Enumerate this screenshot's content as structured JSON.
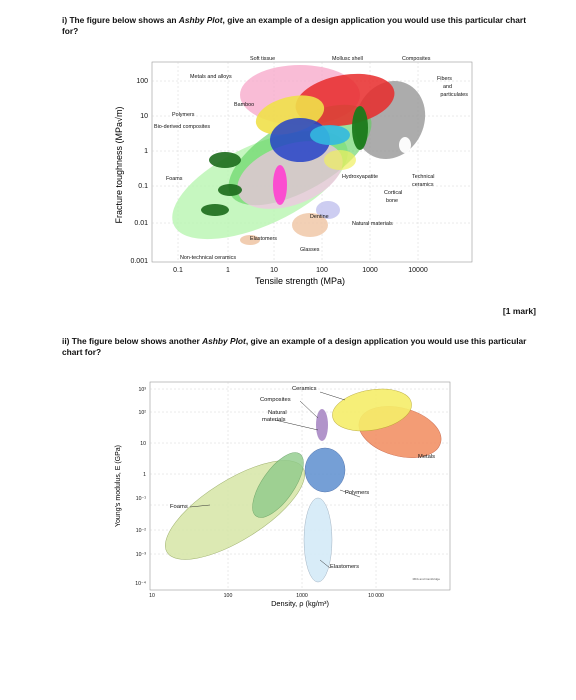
{
  "question1": {
    "prefix": "i) The figure below shows an ",
    "emph": "Ashby Plot",
    "suffix": ", give an example of a design application you would use this particular chart for?"
  },
  "mark": "[1 mark]",
  "question2": {
    "prefix": "ii) The figure below shows another ",
    "emph": "Ashby Plot",
    "suffix": ", give an example of a design application you would use this particular chart for?"
  },
  "chart_data": [
    {
      "type": "scatter",
      "title": "",
      "xlabel": "Tensile strength (MPa)",
      "ylabel": "Fracture toughness (MPa√m)",
      "x_scale": "log",
      "y_scale": "log",
      "x_ticks": [
        "0.1",
        "1",
        "10",
        "100",
        "1000",
        "10000"
      ],
      "y_ticks": [
        "0.001",
        "0.01",
        "0.1",
        "1",
        "10",
        "100"
      ],
      "grid": true,
      "annotations": [
        "Soft tissue",
        "Mollusc shell",
        "Composites",
        "Metals and alloys",
        "Fibers and particulates",
        "Bamboo",
        "Polymers",
        "Bio-derived composites",
        "Foams",
        "Hydroxyapatite",
        "Technical ceramics",
        "Cortical bone",
        "Dentine",
        "Natural materials",
        "Elastomers",
        "Glasses",
        "Non-technical ceramics"
      ],
      "regions": [
        {
          "name": "Metals and alloys",
          "x": [
            40,
            4000
          ],
          "y": [
            8,
            200
          ],
          "color": "#e23a3a"
        },
        {
          "name": "Composites",
          "x": [
            100,
            4000
          ],
          "y": [
            3,
            60
          ],
          "color": "#b0b0b0"
        },
        {
          "name": "Polymers",
          "x": [
            5,
            150
          ],
          "y": [
            0.5,
            8
          ],
          "color": "#2a44c8"
        },
        {
          "name": "Foams",
          "x": [
            0.1,
            10
          ],
          "y": [
            0.005,
            0.5
          ],
          "color": "#7ee07e"
        },
        {
          "name": "Elastomers",
          "x": [
            3,
            40
          ],
          "y": [
            0.05,
            1
          ],
          "color": "#f04fb0"
        },
        {
          "name": "Natural materials",
          "x": [
            0.2,
            300
          ],
          "y": [
            0.02,
            20
          ],
          "color": "#2f8f2f"
        },
        {
          "name": "Glasses",
          "x": [
            20,
            200
          ],
          "y": [
            0.4,
            2
          ],
          "color": "#d9a0a0"
        },
        {
          "name": "Technical ceramics",
          "x": [
            200,
            3000
          ],
          "y": [
            1,
            10
          ],
          "color": "#e8d04a"
        }
      ]
    },
    {
      "type": "scatter",
      "title": "",
      "xlabel": "Density, ρ (kg/m³)",
      "ylabel": "Young's modulus, E (GPa)",
      "x_scale": "log",
      "y_scale": "log",
      "x_ticks": [
        "10",
        "100",
        "1000",
        "10 000"
      ],
      "y_ticks": [
        "10⁻⁴",
        "10⁻³",
        "10⁻²",
        "10⁻¹",
        "1",
        "10",
        "10²",
        "10³"
      ],
      "grid": true,
      "annotations": [
        "Ceramics",
        "Composites",
        "Natural materials",
        "Metals",
        "Polymers",
        "Foams",
        "Elastomers"
      ],
      "regions": [
        {
          "name": "Foams",
          "x": [
            10,
            800
          ],
          "y": [
            0.0001,
            1
          ],
          "color": "#dbe8a0"
        },
        {
          "name": "Natural materials",
          "x": [
            150,
            1500
          ],
          "y": [
            0.01,
            50
          ],
          "color": "#9fd09a"
        },
        {
          "name": "Polymers",
          "x": [
            900,
            2200
          ],
          "y": [
            0.2,
            5
          ],
          "color": "#6a9ad0"
        },
        {
          "name": "Elastomers",
          "x": [
            900,
            1600
          ],
          "y": [
            0.001,
            0.1
          ],
          "color": "#d8ecf7"
        },
        {
          "name": "Metals",
          "x": [
            2500,
            20000
          ],
          "y": [
            10,
            400
          ],
          "color": "#f08a6a"
        },
        {
          "name": "Ceramics",
          "x": [
            2000,
            15000
          ],
          "y": [
            50,
            1000
          ],
          "color": "#f5ea60"
        },
        {
          "name": "Composites",
          "x": [
            1500,
            2500
          ],
          "y": [
            10,
            300
          ],
          "color": "#a888c0"
        }
      ]
    }
  ]
}
